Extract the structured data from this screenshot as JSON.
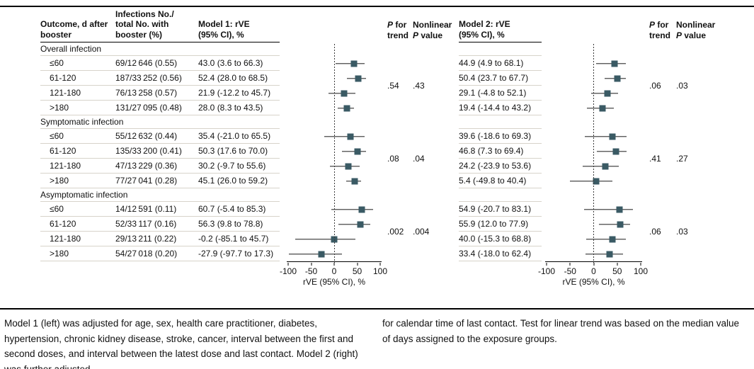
{
  "figure": {
    "headers": {
      "outcome": "Outcome, d after\nbooster",
      "infections": "Infections No./\ntotal No. with\nbooster (%)",
      "model1": "Model 1: rVE\n(95% CI), %",
      "model2": "Model 2: rVE\n(95% CI), %",
      "p": "P",
      "for_part": " for",
      "trend": "trend",
      "nonlinear": "Nonlinear",
      "value_part": " value"
    },
    "footnote_left": "Model 1 (left) was adjusted for age, sex, health care practitioner, diabetes, hypertension, chronic kidney disease, stroke, cancer, interval between the first and second doses, and interval between the latest dose and last contact. Model 2 (right) was further adjusted",
    "footnote_right": "for calendar time of last contact. Test for linear trend was based on the median value of days assigned to the exposure groups."
  },
  "chart_data": {
    "type": "scatter",
    "subtype": "forest-plot",
    "series_names": [
      "Model 1: rVE (95% CI), %",
      "Model 2: rVE (95% CI), %"
    ],
    "xlabel": "rVE (95% CI), %",
    "xlim": [
      -100,
      100
    ],
    "xticks": [
      -100,
      -50,
      0,
      50,
      100
    ],
    "reference_line": 0,
    "grid": false,
    "colors": {
      "marker": "#3a5a64",
      "separator": "#d7d3ca"
    },
    "groups": [
      {
        "label": "Overall infection",
        "model1": {
          "p_trend": ".54",
          "nonlinear_p": ".43"
        },
        "model2": {
          "p_trend": ".06",
          "nonlinear_p": ".03"
        },
        "rows": [
          {
            "outcome": "≤60",
            "infections": "69/12 646 (0.55)",
            "model1": {
              "text": "43.0 (3.6 to 66.3)",
              "est": 43.0,
              "lo": 3.6,
              "hi": 66.3
            },
            "model2": {
              "text": "44.9 (4.9 to 68.1)",
              "est": 44.9,
              "lo": 4.9,
              "hi": 68.1
            }
          },
          {
            "outcome": "61-120",
            "infections": "187/33 252 (0.56)",
            "model1": {
              "text": "52.4 (28.0 to 68.5)",
              "est": 52.4,
              "lo": 28.0,
              "hi": 68.5
            },
            "model2": {
              "text": "50.4 (23.7 to 67.7)",
              "est": 50.4,
              "lo": 23.7,
              "hi": 67.7
            }
          },
          {
            "outcome": "121-180",
            "infections": "76/13 258 (0.57)",
            "model1": {
              "text": "21.9 (-12.2 to 45.7)",
              "est": 21.9,
              "lo": -12.2,
              "hi": 45.7
            },
            "model2": {
              "text": "29.1 (-4.8 to 52.1)",
              "est": 29.1,
              "lo": -4.8,
              "hi": 52.1
            }
          },
          {
            "outcome": ">180",
            "infections": "131/27 095 (0.48)",
            "model1": {
              "text": "28.0 (8.3 to 43.5)",
              "est": 28.0,
              "lo": 8.3,
              "hi": 43.5
            },
            "model2": {
              "text": "19.4 (-14.4 to 43.2)",
              "est": 19.4,
              "lo": -14.4,
              "hi": 43.2
            }
          }
        ]
      },
      {
        "label": "Symptomatic infection",
        "model1": {
          "p_trend": ".08",
          "nonlinear_p": ".04"
        },
        "model2": {
          "p_trend": ".41",
          "nonlinear_p": ".27"
        },
        "rows": [
          {
            "outcome": "≤60",
            "infections": "55/12 632 (0.44)",
            "model1": {
              "text": "35.4 (-21.0 to 65.5)",
              "est": 35.4,
              "lo": -21.0,
              "hi": 65.5
            },
            "model2": {
              "text": "39.6 (-18.6 to 69.3)",
              "est": 39.6,
              "lo": -18.6,
              "hi": 69.3
            }
          },
          {
            "outcome": "61-120",
            "infections": "135/33 200 (0.41)",
            "model1": {
              "text": "50.3 (17.6 to 70.0)",
              "est": 50.3,
              "lo": 17.6,
              "hi": 70.0
            },
            "model2": {
              "text": "46.8 (7.3 to 69.4)",
              "est": 46.8,
              "lo": 7.3,
              "hi": 69.4
            }
          },
          {
            "outcome": "121-180",
            "infections": "47/13 229 (0.36)",
            "model1": {
              "text": "30.2 (-9.7 to 55.6)",
              "est": 30.2,
              "lo": -9.7,
              "hi": 55.6
            },
            "model2": {
              "text": "24.2 (-23.9 to 53.6)",
              "est": 24.2,
              "lo": -23.9,
              "hi": 53.6
            }
          },
          {
            "outcome": ">180",
            "infections": "77/27 041 (0.28)",
            "model1": {
              "text": "45.1 (26.0 to 59.2)",
              "est": 45.1,
              "lo": 26.0,
              "hi": 59.2
            },
            "model2": {
              "text": "5.4 (-49.8 to 40.4)",
              "est": 5.4,
              "lo": -49.8,
              "hi": 40.4
            }
          }
        ]
      },
      {
        "label": "Asymptomatic infection",
        "model1": {
          "p_trend": ".002",
          "nonlinear_p": ".004"
        },
        "model2": {
          "p_trend": ".06",
          "nonlinear_p": ".03"
        },
        "rows": [
          {
            "outcome": "≤60",
            "infections": "14/12 591 (0.11)",
            "model1": {
              "text": "60.7 (-5.4 to 85.3)",
              "est": 60.7,
              "lo": -5.4,
              "hi": 85.3
            },
            "model2": {
              "text": "54.9 (-20.7 to 83.1)",
              "est": 54.9,
              "lo": -20.7,
              "hi": 83.1
            }
          },
          {
            "outcome": "61-120",
            "infections": "52/33 117 (0.16)",
            "model1": {
              "text": "56.3 (9.8 to 78.8)",
              "est": 56.3,
              "lo": 9.8,
              "hi": 78.8
            },
            "model2": {
              "text": "55.9 (12.0 to 77.9)",
              "est": 55.9,
              "lo": 12.0,
              "hi": 77.9
            }
          },
          {
            "outcome": "121-180",
            "infections": "29/13 211 (0.22)",
            "model1": {
              "text": "-0.2 (-85.1 to 45.7)",
              "est": -0.2,
              "lo": -85.1,
              "hi": 45.7
            },
            "model2": {
              "text": "40.0 (-15.3 to 68.8)",
              "est": 40.0,
              "lo": -15.3,
              "hi": 68.8
            }
          },
          {
            "outcome": ">180",
            "infections": "54/27 018 (0.20)",
            "model1": {
              "text": "-27.9 (-97.7 to 17.3)",
              "est": -27.9,
              "lo": -97.7,
              "hi": 17.3
            },
            "model2": {
              "text": "33.4 (-18.0 to 62.4)",
              "est": 33.4,
              "lo": -18.0,
              "hi": 62.4
            }
          }
        ]
      }
    ]
  }
}
